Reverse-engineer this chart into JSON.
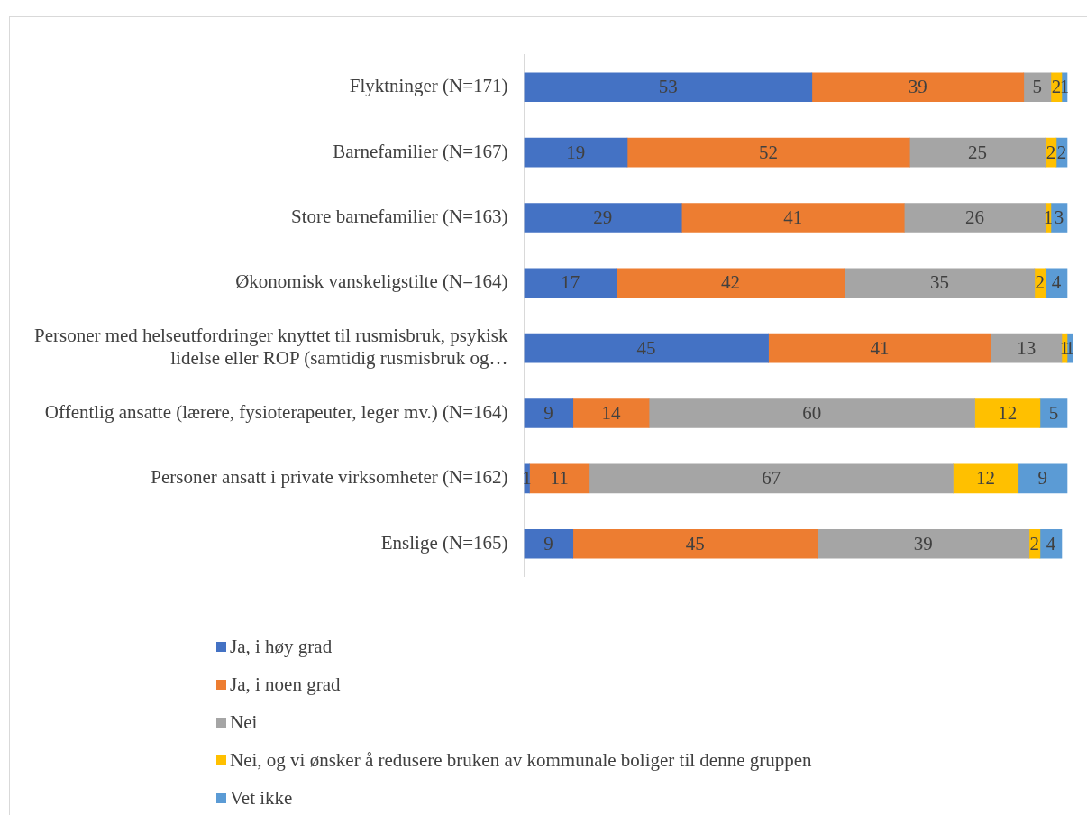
{
  "chart_data": {
    "type": "bar",
    "orientation": "horizontal",
    "stacked": true,
    "data_labels": true,
    "legend": "bottom",
    "categories": [
      "Flyktninger (N=171)",
      "Barnefamilier (N=167)",
      "Store barnefamilier (N=163)",
      "Økonomisk vanskeligstilte (N=164)",
      "Personer med helseutfordringer knyttet til rusmisbruk, psykisk lidelse eller ROP (samtidig rusmisbruk og…",
      "Offentlig ansatte (lærere, fysioterapeuter, leger mv.) (N=164)",
      "Personer ansatt i private virksomheter (N=162)",
      "Enslige (N=165)"
    ],
    "series": [
      {
        "name": "Ja, i høy grad",
        "color": "#4472c4",
        "values": [
          53,
          19,
          29,
          17,
          45,
          9,
          1,
          9
        ]
      },
      {
        "name": "Ja, i noen grad",
        "color": "#ed7d31",
        "values": [
          39,
          52,
          41,
          42,
          41,
          14,
          11,
          45
        ]
      },
      {
        "name": "Nei",
        "color": "#a5a5a5",
        "values": [
          5,
          25,
          26,
          35,
          13,
          60,
          67,
          39
        ]
      },
      {
        "name": "Nei, og vi ønsker å redusere bruken av kommunale boliger til denne gruppen",
        "color": "#ffc000",
        "values": [
          2,
          2,
          1,
          2,
          1,
          12,
          12,
          2
        ]
      },
      {
        "name": "Vet ikke",
        "color": "#5b9bd5",
        "values": [
          1,
          2,
          3,
          4,
          1,
          5,
          9,
          4
        ]
      }
    ]
  }
}
